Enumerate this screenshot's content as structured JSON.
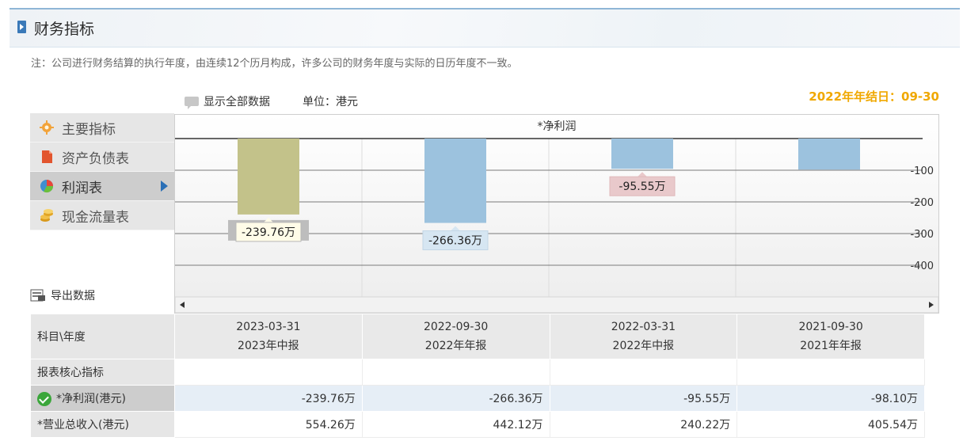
{
  "header": {
    "title": "财务指标"
  },
  "note": "注：公司进行财务结算的执行年度，由连续12个历月构成，许多公司的财务年度与实际的日历年度不一致。",
  "controls": {
    "show_all": "显示全部数据",
    "unit": "单位：港元"
  },
  "fiscal_year_end": "2022年年结日：09-30",
  "sidebar": {
    "items": [
      {
        "label": "主要指标",
        "icon": "gear-icon"
      },
      {
        "label": "资产负债表",
        "icon": "document-icon"
      },
      {
        "label": "利润表",
        "icon": "pie-chart-icon",
        "active": true
      },
      {
        "label": "现金流量表",
        "icon": "coins-icon"
      }
    ],
    "export_label": "导出数据"
  },
  "colors": {
    "accent": "#3a79b8",
    "highlight_bar": "#c3c28a",
    "bar": "#9cc2de",
    "fy_end": "#f0a800"
  },
  "chart_data": {
    "type": "bar",
    "title": "*净利润",
    "categories": [
      "2023-03-31",
      "2022-09-30",
      "2022-03-31",
      "2021-09-30"
    ],
    "values": [
      -239.76,
      -266.36,
      -95.55,
      -98.1
    ],
    "data_labels": [
      "-239.76万",
      "-266.36万",
      "-95.55万",
      ""
    ],
    "y_ticks": [
      "-100",
      "-200",
      "-300",
      "-400"
    ],
    "ylim": [
      -500,
      0
    ],
    "grid": true
  },
  "table": {
    "corner": "科目\\年度",
    "columns": [
      {
        "date": "2023-03-31",
        "report": "2023年中报"
      },
      {
        "date": "2022-09-30",
        "report": "2022年年报"
      },
      {
        "date": "2022-03-31",
        "report": "2022年中报"
      },
      {
        "date": "2021-09-30",
        "report": "2021年年报"
      }
    ],
    "section": "报表核心指标",
    "rows": [
      {
        "label": "*净利润(港元)",
        "values": [
          "-239.76万",
          "-266.36万",
          "-95.55万",
          "-98.10万"
        ]
      },
      {
        "label": "*营业总收入(港元)",
        "values": [
          "554.26万",
          "442.12万",
          "240.22万",
          "405.54万"
        ]
      }
    ]
  }
}
